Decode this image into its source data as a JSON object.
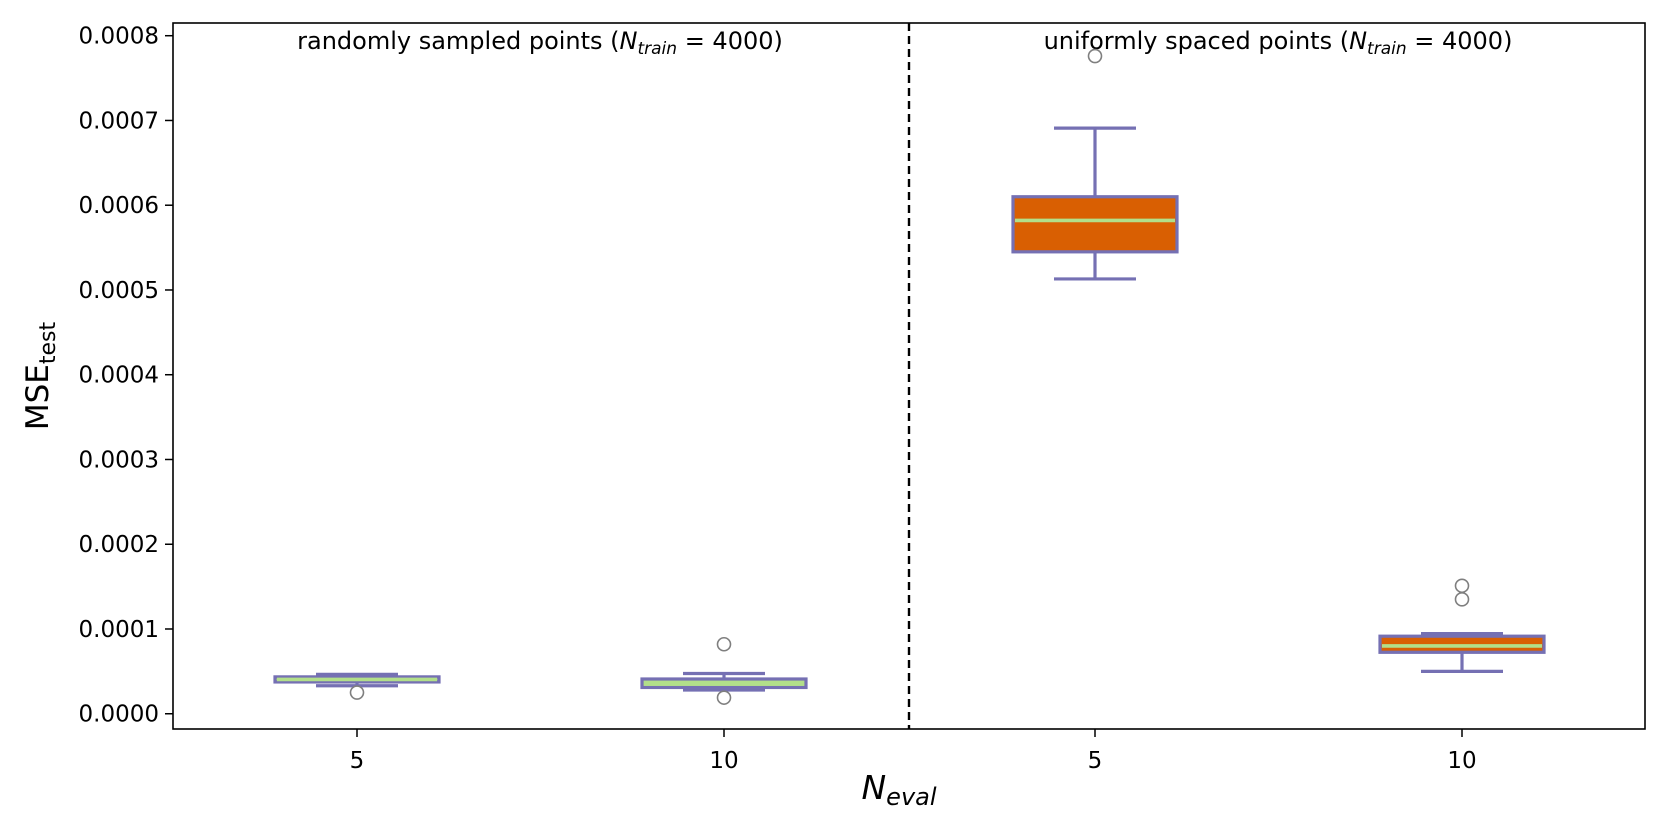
{
  "chart_data": {
    "type": "box",
    "xlabel": "N",
    "xlabel_sub": "eval",
    "ylabel": "MSE",
    "ylabel_sub": "test",
    "ylim": [
      -1.8e-05,
      0.000815
    ],
    "yticks": [
      0,
      0.0001,
      0.0002,
      0.0003,
      0.0004,
      0.0005,
      0.0006,
      0.0007,
      0.0008
    ],
    "ytick_labels": [
      "0.0000",
      "0.0001",
      "0.0002",
      "0.0003",
      "0.0004",
      "0.0005",
      "0.0006",
      "0.0007",
      "0.0008"
    ],
    "divider_style": "dashed",
    "colors": {
      "box_stroke": "#7570b3",
      "median": "#b2df8a",
      "random_fill": "#b2df8a",
      "uniform_fill": "#d95f02",
      "flier_stroke": "#7f7f7f"
    },
    "groups": [
      {
        "annotation": {
          "text": "randomly sampled points (",
          "var": "N",
          "sub": "train",
          "rest": " = 4000)"
        },
        "boxes": [
          {
            "label": "5",
            "q1": 3.75e-05,
            "median": 4.05e-05,
            "q3": 4.35e-05,
            "whisker_low": 3.3e-05,
            "whisker_high": 4.65e-05,
            "fliers": [
              2.5e-05
            ]
          },
          {
            "label": "10",
            "q1": 3.1e-05,
            "median": 3.5e-05,
            "q3": 4.1e-05,
            "whisker_low": 2.8e-05,
            "whisker_high": 4.75e-05,
            "fliers": [
              8.2e-05,
              1.9e-05
            ]
          }
        ]
      },
      {
        "annotation": {
          "text": "uniformly spaced points (",
          "var": "N",
          "sub": "train",
          "rest": " = 4000)"
        },
        "boxes": [
          {
            "label": "5",
            "q1": 0.000545,
            "median": 0.000582,
            "q3": 0.00061,
            "whisker_low": 0.000513,
            "whisker_high": 0.000691,
            "fliers": [
              0.000776
            ]
          },
          {
            "label": "10",
            "q1": 7.25e-05,
            "median": 8e-05,
            "q3": 9.15e-05,
            "whisker_low": 5e-05,
            "whisker_high": 9.45e-05,
            "fliers": [
              0.000151,
              0.000135
            ]
          }
        ]
      }
    ]
  }
}
